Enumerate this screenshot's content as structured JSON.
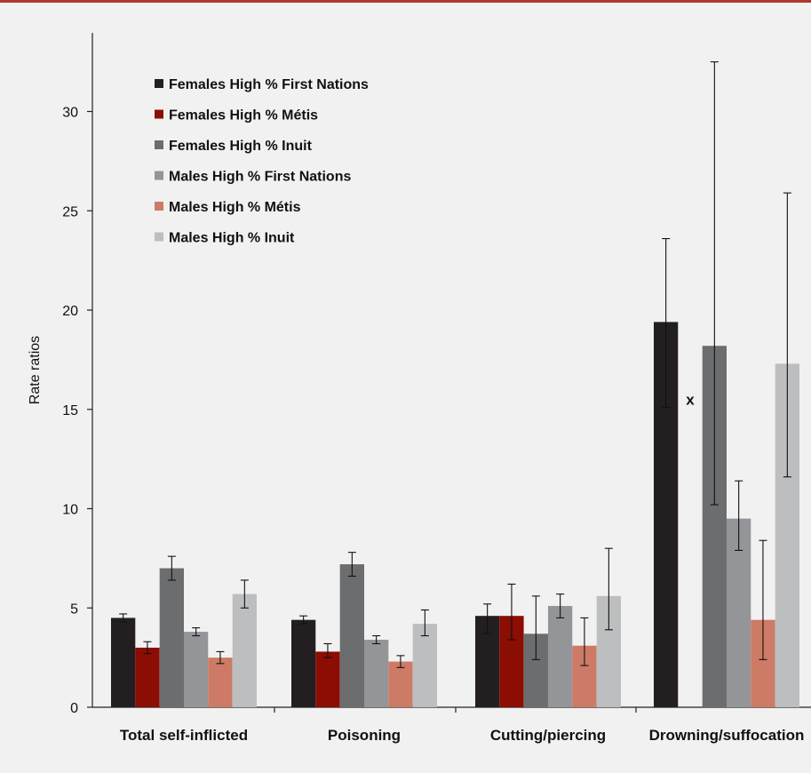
{
  "chart_data": {
    "type": "bar",
    "title": "",
    "xlabel": "",
    "ylabel": "Rate ratios",
    "ylim": [
      0,
      30
    ],
    "yticks": [
      0,
      5,
      10,
      15,
      20,
      25,
      30
    ],
    "grid": false,
    "legend_position": "top-left",
    "categories": [
      "Total self-inflicted",
      "Poisoning",
      "Cutting/piercing",
      "Drowning/suffocation"
    ],
    "series": [
      {
        "name": "Females High % First Nations",
        "color": "#231f20",
        "values": [
          4.5,
          4.4,
          4.6,
          19.4
        ],
        "err_low": [
          4.3,
          4.2,
          3.7,
          15.1
        ],
        "err_high": [
          4.7,
          4.6,
          5.2,
          23.6
        ]
      },
      {
        "name": "Females High % Métis",
        "color": "#8b0d04",
        "values": [
          3.0,
          2.8,
          4.6,
          null
        ],
        "err_low": [
          2.7,
          2.5,
          3.4,
          null
        ],
        "err_high": [
          3.3,
          3.2,
          6.2,
          null
        ]
      },
      {
        "name": "Females High % Inuit",
        "color": "#6c6d6f",
        "values": [
          7.0,
          7.2,
          3.7,
          18.2
        ],
        "err_low": [
          6.4,
          6.6,
          2.4,
          10.2
        ],
        "err_high": [
          7.6,
          7.8,
          5.6,
          32.5
        ]
      },
      {
        "name": "Males High % First Nations",
        "color": "#939598",
        "values": [
          3.8,
          3.4,
          5.1,
          9.5
        ],
        "err_low": [
          3.6,
          3.2,
          4.5,
          7.9
        ],
        "err_high": [
          4.0,
          3.6,
          5.7,
          11.4
        ]
      },
      {
        "name": "Males High % Métis",
        "color": "#cd7b66",
        "values": [
          2.5,
          2.3,
          3.1,
          4.4
        ],
        "err_low": [
          2.2,
          2.0,
          2.1,
          2.4
        ],
        "err_high": [
          2.8,
          2.6,
          4.5,
          8.4
        ]
      },
      {
        "name": "Males High % Inuit",
        "color": "#bcbec0",
        "values": [
          5.7,
          4.2,
          5.6,
          17.3
        ],
        "err_low": [
          5.0,
          3.6,
          3.9,
          11.6
        ],
        "err_high": [
          6.4,
          4.9,
          8.0,
          25.9
        ]
      }
    ],
    "annotations": [
      {
        "text": "x",
        "category": "Drowning/suffocation",
        "series": "Females High % Métis",
        "at_value": 15.5
      }
    ]
  }
}
